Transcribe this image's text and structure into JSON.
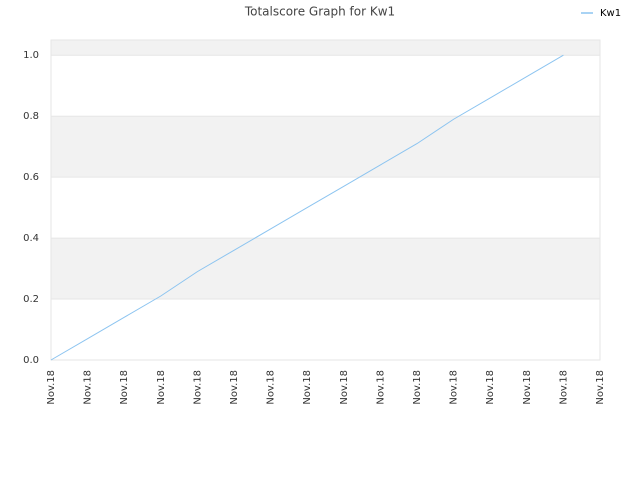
{
  "chart_data": {
    "type": "line",
    "title": "Totalscore Graph for Kw1",
    "categories": [
      "Nov.18",
      "Nov.18",
      "Nov.18",
      "Nov.18",
      "Nov.18",
      "Nov.18",
      "Nov.18",
      "Nov.18",
      "Nov.18",
      "Nov.18",
      "Nov.18",
      "Nov.18",
      "Nov.18",
      "Nov.18",
      "Nov.18",
      "Nov.18"
    ],
    "series": [
      {
        "name": "Kw1",
        "color": "#8cc4f0",
        "values": [
          0,
          0.07,
          0.14,
          0.21,
          0.29,
          0.36,
          0.43,
          0.5,
          0.57,
          0.64,
          0.71,
          0.79,
          0.86,
          0.93,
          1.0,
          null
        ]
      }
    ],
    "ylim": [
      0,
      1.05
    ],
    "yticks": [
      {
        "value": 0,
        "label": "0.0"
      },
      {
        "value": 0.2,
        "label": "0.2"
      },
      {
        "value": 0.4,
        "label": "0.4"
      },
      {
        "value": 0.6,
        "label": "0.6"
      },
      {
        "value": 0.8,
        "label": "0.8"
      },
      {
        "value": 1,
        "label": "1.0"
      }
    ],
    "grid": true,
    "legend": "top-right"
  }
}
